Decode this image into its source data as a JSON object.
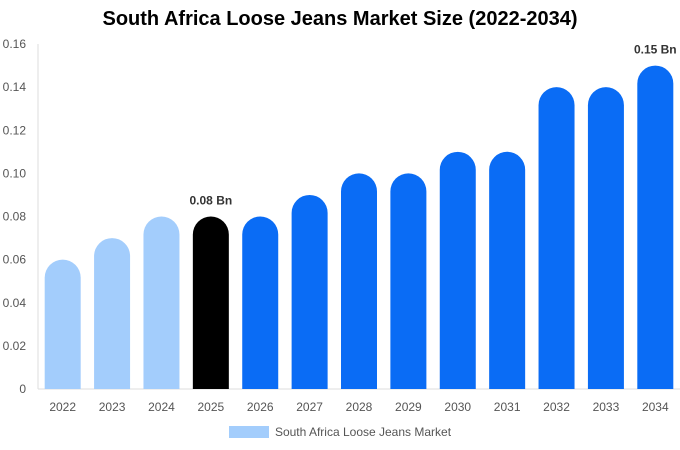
{
  "chart_data": {
    "type": "bar",
    "title": "South Africa Loose Jeans Market Size (2022-2034)",
    "xlabel": "",
    "ylabel": "",
    "categories": [
      "2022",
      "2023",
      "2024",
      "2025",
      "2026",
      "2027",
      "2028",
      "2029",
      "2030",
      "2031",
      "2032",
      "2033",
      "2034"
    ],
    "series": [
      {
        "name": "South Africa Loose Jeans Market",
        "values": [
          0.06,
          0.07,
          0.08,
          0.08,
          0.08,
          0.09,
          0.1,
          0.1,
          0.11,
          0.11,
          0.14,
          0.14,
          0.15
        ]
      }
    ],
    "ylim": [
      0,
      0.16
    ],
    "yticks": [
      "0",
      "0.02",
      "0.04",
      "0.06",
      "0.08",
      "0.10",
      "0.12",
      "0.14",
      "0.16"
    ],
    "bar_colors": [
      "#a3cdfc",
      "#a3cdfc",
      "#a3cdfc",
      "#000000",
      "#0a6cf5",
      "#0a6cf5",
      "#0a6cf5",
      "#0a6cf5",
      "#0a6cf5",
      "#0a6cf5",
      "#0a6cf5",
      "#0a6cf5",
      "#0a6cf5"
    ],
    "data_labels": [
      {
        "category": "2025",
        "text": "0.08 Bn"
      },
      {
        "category": "2034",
        "text": "0.15 Bn"
      }
    ],
    "legend": {
      "label": "South Africa Loose Jeans Market",
      "color": "#a3cdfc",
      "position": "bottom"
    },
    "grid": false
  }
}
